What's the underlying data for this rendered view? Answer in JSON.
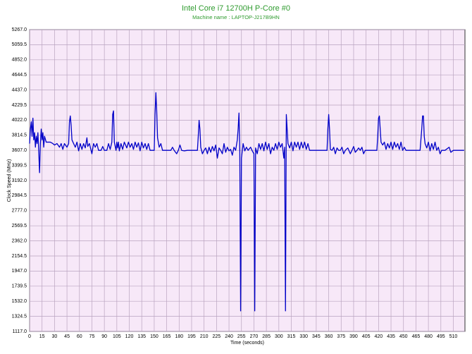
{
  "chart_data": {
    "type": "line",
    "title": "Intel Core i7 12700H P-Core #0",
    "subtitle": "Machine name : LAPTOP-J217B9HN",
    "x_label": "Time (seconds)",
    "y_label": "Clock Speed (MHz)",
    "color": "#0000c8",
    "grid": true,
    "xlim": [
      0,
      524
    ],
    "ylim": [
      1117,
      5267
    ],
    "xticks": [
      0,
      15,
      30,
      45,
      60,
      75,
      90,
      105,
      120,
      135,
      150,
      165,
      180,
      195,
      210,
      225,
      240,
      255,
      270,
      285,
      300,
      315,
      330,
      345,
      360,
      375,
      390,
      405,
      420,
      435,
      450,
      465,
      480,
      495,
      510
    ],
    "yticks": [
      {
        "value": 1117,
        "label": "1117.0"
      },
      1324.5,
      {
        "value": 1532,
        "label": "1532.0"
      },
      1739.5,
      {
        "value": 1947,
        "label": "1947.0"
      },
      2154.5,
      {
        "value": 2362,
        "label": "2362.0"
      },
      2569.5,
      {
        "value": 2777,
        "label": "2777.0"
      },
      2984.5,
      {
        "value": 3192,
        "label": "3192.0"
      },
      3399.5,
      {
        "value": 3607,
        "label": "3607.0"
      },
      3814.5,
      {
        "value": 4022,
        "label": "4022.0"
      },
      4229.5,
      {
        "value": 4437,
        "label": "4437.0"
      },
      4644.5,
      {
        "value": 4852,
        "label": "4852.0"
      },
      5059.5,
      {
        "value": 5267,
        "label": "5267.0"
      }
    ],
    "x": [
      0,
      1,
      2,
      3,
      4,
      5,
      6,
      7,
      8,
      9,
      10,
      11,
      12,
      13,
      14,
      15,
      16,
      17,
      18,
      20,
      25,
      28,
      30,
      33,
      36,
      38,
      40,
      42,
      45,
      47,
      48,
      49,
      50,
      51,
      53,
      55,
      57,
      59,
      61,
      63,
      65,
      67,
      69,
      70,
      72,
      75,
      77,
      79,
      81,
      83,
      86,
      88,
      90,
      93,
      95,
      97,
      99,
      100,
      101,
      102,
      104,
      105,
      106,
      107,
      108,
      110,
      112,
      114,
      117,
      119,
      121,
      123,
      125,
      127,
      129,
      131,
      133,
      135,
      137,
      139,
      141,
      143,
      145,
      148,
      150,
      151,
      152,
      153,
      154,
      156,
      158,
      160,
      164,
      167,
      170,
      172,
      174,
      177,
      179,
      181,
      183,
      186,
      190,
      195,
      200,
      202,
      203,
      204,
      205,
      206,
      208,
      210,
      212,
      214,
      216,
      218,
      220,
      222,
      224,
      226,
      228,
      230,
      232,
      234,
      236,
      238,
      240,
      242,
      244,
      246,
      248,
      250,
      251,
      252,
      253,
      254,
      255,
      257,
      259,
      261,
      263,
      266,
      268,
      270,
      271,
      272,
      274,
      276,
      278,
      280,
      282,
      284,
      286,
      288,
      290,
      292,
      294,
      296,
      298,
      300,
      302,
      304,
      306,
      307,
      308,
      309,
      310,
      311,
      313,
      315,
      317,
      319,
      321,
      323,
      325,
      327,
      329,
      331,
      333,
      335,
      337,
      340,
      345,
      350,
      355,
      358,
      359,
      360,
      361,
      362,
      364,
      366,
      368,
      370,
      372,
      374,
      376,
      378,
      380,
      383,
      386,
      388,
      390,
      392,
      394,
      396,
      398,
      400,
      402,
      404,
      407,
      410,
      415,
      418,
      419,
      420,
      421,
      422,
      423,
      425,
      427,
      429,
      431,
      433,
      435,
      437,
      439,
      441,
      443,
      445,
      447,
      449,
      451,
      453,
      456,
      460,
      465,
      470,
      472,
      473,
      474,
      475,
      476,
      478,
      480,
      482,
      484,
      486,
      488,
      490,
      492,
      494,
      496,
      500,
      505,
      507,
      510,
      515,
      520,
      523
    ],
    "values": [
      3700,
      3900,
      4000,
      3800,
      4050,
      3750,
      3850,
      3650,
      3800,
      3700,
      3850,
      3600,
      3300,
      3700,
      3900,
      3750,
      3850,
      3650,
      3800,
      3720,
      3720,
      3700,
      3680,
      3700,
      3650,
      3700,
      3620,
      3700,
      3650,
      3700,
      4000,
      4080,
      3950,
      3750,
      3700,
      3650,
      3720,
      3600,
      3700,
      3620,
      3700,
      3640,
      3780,
      3660,
      3700,
      3560,
      3700,
      3650,
      3700,
      3607,
      3607,
      3660,
      3607,
      3607,
      3700,
      3620,
      3720,
      4100,
      4150,
      3720,
      3607,
      3720,
      3640,
      3720,
      3600,
      3700,
      3620,
      3720,
      3640,
      3720,
      3650,
      3700,
      3620,
      3720,
      3650,
      3710,
      3600,
      3720,
      3640,
      3700,
      3620,
      3700,
      3607,
      3607,
      3607,
      4100,
      4400,
      4150,
      3780,
      3650,
      3700,
      3607,
      3607,
      3607,
      3607,
      3650,
      3607,
      3560,
      3607,
      3680,
      3607,
      3600,
      3607,
      3607,
      3607,
      3607,
      3800,
      4020,
      3900,
      3650,
      3560,
      3607,
      3640,
      3560,
      3650,
      3580,
      3660,
      3600,
      3680,
      3500,
      3640,
      3607,
      3560,
      3700,
      3580,
      3650,
      3600,
      3620,
      3540,
      3650,
      3607,
      3750,
      3900,
      4120,
      3600,
      1400,
      3500,
      3700,
      3600,
      3650,
      3607,
      3650,
      3600,
      3560,
      1400,
      3640,
      3560,
      3700,
      3620,
      3700,
      3600,
      3720,
      3620,
      3700,
      3560,
      3650,
      3607,
      3700,
      3620,
      3720,
      3650,
      3700,
      3500,
      3650,
      1400,
      4100,
      3900,
      3700,
      3640,
      3720,
      3600,
      3720,
      3650,
      3720,
      3620,
      3720,
      3640,
      3720,
      3620,
      3700,
      3607,
      3607,
      3607,
      3607,
      3607,
      3607,
      3900,
      4100,
      3900,
      3620,
      3607,
      3650,
      3560,
      3640,
      3607,
      3607,
      3650,
      3560,
      3607,
      3640,
      3560,
      3607,
      3660,
      3580,
      3607,
      3640,
      3607,
      3650,
      3560,
      3607,
      3607,
      3607,
      3607,
      3607,
      3800,
      4050,
      4080,
      3900,
      3720,
      3680,
      3720,
      3620,
      3700,
      3640,
      3720,
      3620,
      3720,
      3650,
      3700,
      3620,
      3720,
      3607,
      3650,
      3607,
      3607,
      3607,
      3607,
      3607,
      3900,
      4080,
      4080,
      3800,
      3700,
      3640,
      3720,
      3600,
      3700,
      3620,
      3720,
      3607,
      3650,
      3560,
      3607,
      3607,
      3650,
      3580,
      3607,
      3607,
      3607,
      3607
    ]
  }
}
